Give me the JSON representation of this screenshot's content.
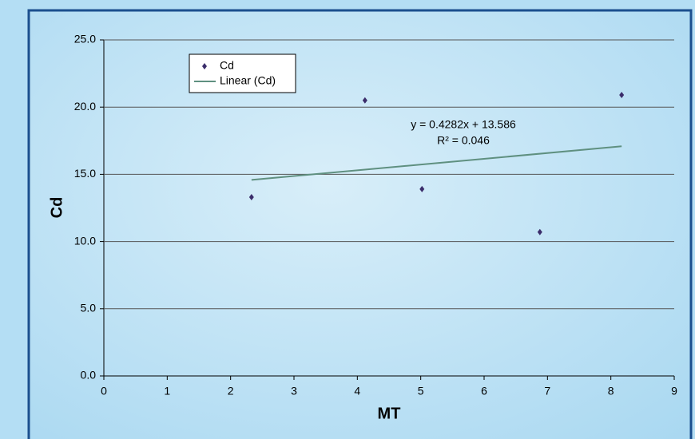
{
  "chart_data": {
    "type": "scatter",
    "x_label": "MT",
    "y_label": "Cd",
    "series": [
      {
        "name": "Cd",
        "color": "#3b2d6b",
        "x": [
          2.33,
          4.12,
          5.02,
          6.88,
          8.17
        ],
        "values": [
          13.3,
          20.5,
          13.9,
          10.7,
          20.9
        ]
      }
    ],
    "trendline": {
      "name": "Linear (Cd)",
      "color": "#5f9080",
      "slope": 0.4282,
      "intercept": 13.586,
      "equation": "y = 0.4282x + 13.586",
      "r_squared": "R² = 0.046"
    },
    "xlim": [
      0,
      9
    ],
    "xticks": [
      0,
      1,
      2,
      3,
      4,
      5,
      6,
      7,
      8,
      9
    ],
    "ylim": [
      0,
      25
    ],
    "yticks": [
      {
        "value": 0,
        "label": "0.0"
      },
      {
        "value": 5,
        "label": "5.0"
      },
      {
        "value": 10,
        "label": "10.0"
      },
      {
        "value": 15,
        "label": "15.0"
      },
      {
        "value": 20,
        "label": "20.0"
      },
      {
        "value": 25,
        "label": "25.0"
      }
    ],
    "grid": true
  }
}
